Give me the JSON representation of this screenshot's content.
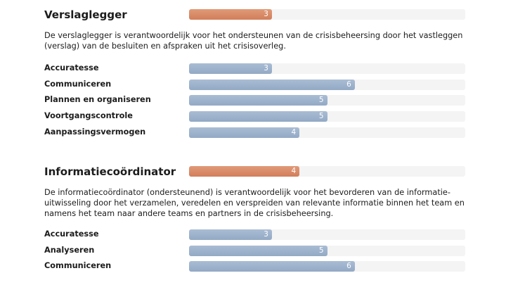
{
  "scale_max": 10,
  "colors": {
    "main": "#d98b68",
    "sub": "#9fb3cc",
    "track": "#f4f4f4"
  },
  "roles": [
    {
      "title": "Verslaglegger",
      "score": 3,
      "description": "De verslaglegger is verantwoordelijk voor het ondersteunen van de crisisbeheersing door het vastleggen (verslag) van de besluiten en afspraken uit het crisisoverleg.",
      "skills": [
        {
          "label": "Accuratesse",
          "value": 3
        },
        {
          "label": "Communiceren",
          "value": 6
        },
        {
          "label": "Plannen en organiseren",
          "value": 5
        },
        {
          "label": "Voortgangscontrole",
          "value": 5
        },
        {
          "label": "Aanpassingsvermogen",
          "value": 4
        }
      ]
    },
    {
      "title": "Informatiecoördinator",
      "score": 4,
      "description": "De informatiecoördinator (ondersteunend) is verantwoordelijk voor het bevorderen van de informatie-uitwisseling door het verzamelen, veredelen en verspreiden van relevante informatie binnen het team en namens het team naar andere teams en partners in de crisisbeheersing.",
      "skills": [
        {
          "label": "Accuratesse",
          "value": 3
        },
        {
          "label": "Analyseren",
          "value": 5
        },
        {
          "label": "Communiceren",
          "value": 6
        }
      ]
    }
  ]
}
